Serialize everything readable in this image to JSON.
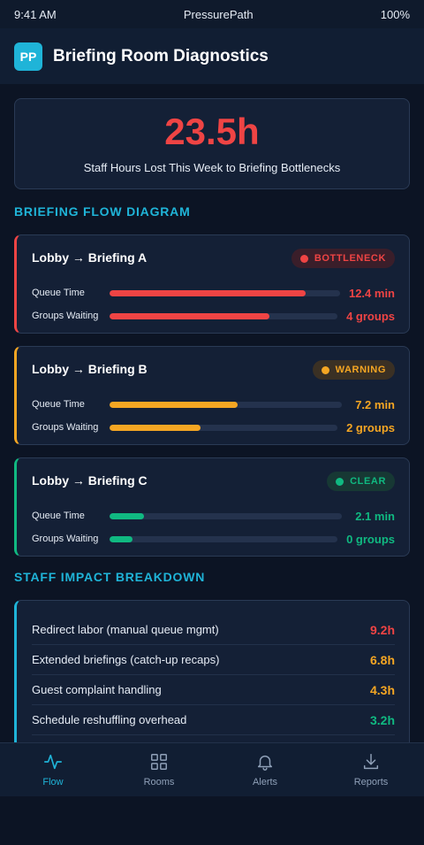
{
  "status_bar": {
    "time": "9:41 AM",
    "carrier": "PressurePath",
    "battery": "100%"
  },
  "header": {
    "logo_text": "PP",
    "title": "Briefing Room Diagnostics"
  },
  "hero": {
    "value": "23.5h",
    "label": "Staff Hours Lost This Week to Briefing Bottlenecks"
  },
  "flow_section_title": "BRIEFING FLOW DIAGRAM",
  "flows": [
    {
      "route": "Lobby → Briefing A",
      "status": "BOTTLENECK",
      "color": "#ef4444",
      "badge_bg": "#3a1e2a",
      "queue_label": "Queue Time",
      "queue_value": "12.4 min",
      "queue_fill_pct": 85,
      "groups_label": "Groups Waiting",
      "groups_value": "4 groups",
      "groups_fill_pct": 70
    },
    {
      "route": "Lobby → Briefing B",
      "status": "WARNING",
      "color": "#f5a623",
      "badge_bg": "#3a3024",
      "queue_label": "Queue Time",
      "queue_value": "7.2 min",
      "queue_fill_pct": 55,
      "groups_label": "Groups Waiting",
      "groups_value": "2 groups",
      "groups_fill_pct": 40
    },
    {
      "route": "Lobby → Briefing C",
      "status": "CLEAR",
      "color": "#10b981",
      "badge_bg": "#173834",
      "queue_label": "Queue Time",
      "queue_value": "2.1 min",
      "queue_fill_pct": 15,
      "groups_label": "Groups Waiting",
      "groups_value": "0 groups",
      "groups_fill_pct": 10
    }
  ],
  "impact_section_title": "STAFF IMPACT BREAKDOWN",
  "impact_items": [
    {
      "label": "Redirect labor (manual queue mgmt)",
      "value": "9.2h",
      "color": "#ef4444"
    },
    {
      "label": "Extended briefings (catch-up recaps)",
      "value": "6.8h",
      "color": "#f5a623"
    },
    {
      "label": "Guest complaint handling",
      "value": "4.3h",
      "color": "#f5a623"
    },
    {
      "label": "Schedule reshuffling overhead",
      "value": "3.2h",
      "color": "#10b981"
    }
  ],
  "tabs": [
    {
      "label": "Flow",
      "icon": "pulse-icon",
      "active": true
    },
    {
      "label": "Rooms",
      "icon": "grid-icon",
      "active": false
    },
    {
      "label": "Alerts",
      "icon": "bell-icon",
      "active": false
    },
    {
      "label": "Reports",
      "icon": "download-icon",
      "active": false
    }
  ],
  "colors": {
    "accent": "#1fb4d8",
    "tab_inactive": "#8fa0b8"
  }
}
